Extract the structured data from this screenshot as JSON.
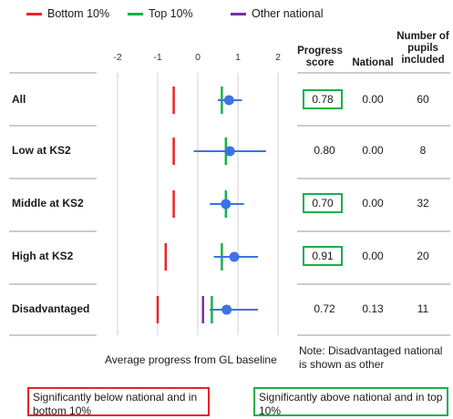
{
  "legend": [
    {
      "label": "Bottom 10%",
      "color": "#e8242b"
    },
    {
      "label": "Top 10%",
      "color": "#18b04a"
    },
    {
      "label": "Other national",
      "color": "#7b2fa3"
    }
  ],
  "headers": {
    "progress": "Progress score",
    "national": "National",
    "pupils": "Number of pupils included"
  },
  "xaxis_title": "Average progress from GL baseline",
  "note": "Note: Disadvantaged national is shown as other",
  "key_boxes": {
    "below": "Significantly below national and in bottom 10%",
    "above": "Significantly above national and in top 10%"
  },
  "colors": {
    "point": "#3b73e6",
    "bottom": "#e8242b",
    "top": "#18b04a",
    "other": "#7b2fa3",
    "highlight": "#18b04a",
    "below_box": "#e8242b"
  },
  "chart_data": {
    "type": "scatter",
    "title": "",
    "xlabel": "Average progress from GL baseline",
    "xlim": [
      -2,
      2
    ],
    "x_ticks": [
      "-2",
      "-1",
      "0",
      "1",
      "2"
    ],
    "grid": true,
    "categories": [
      "All",
      "Low at KS2",
      "Middle at KS2",
      "High at KS2",
      "Disadvantaged"
    ],
    "series": [
      {
        "name": "Progress score",
        "values": [
          0.78,
          0.8,
          0.7,
          0.91,
          0.72
        ],
        "ci_low": [
          0.5,
          -0.1,
          0.3,
          0.4,
          0.3
        ],
        "ci_high": [
          1.1,
          1.7,
          1.15,
          1.5,
          1.5
        ]
      },
      {
        "name": "Bottom 10%",
        "values": [
          -0.6,
          -0.6,
          -0.6,
          -0.8,
          -1.0
        ]
      },
      {
        "name": "Top 10%",
        "values": [
          0.6,
          0.7,
          0.7,
          0.6,
          0.35
        ]
      },
      {
        "name": "Other national",
        "values": [
          null,
          null,
          null,
          null,
          0.13
        ]
      }
    ],
    "table": {
      "rows": [
        {
          "label": "All",
          "progress": "0.78",
          "national": "0.00",
          "pupils": "60",
          "highlight": true
        },
        {
          "label": "Low at KS2",
          "progress": "0.80",
          "national": "0.00",
          "pupils": "8",
          "highlight": false
        },
        {
          "label": "Middle at KS2",
          "progress": "0.70",
          "national": "0.00",
          "pupils": "32",
          "highlight": true
        },
        {
          "label": "High at KS2",
          "progress": "0.91",
          "national": "0.00",
          "pupils": "20",
          "highlight": true
        },
        {
          "label": "Disadvantaged",
          "progress": "0.72",
          "national": "0.13",
          "pupils": "11",
          "highlight": false
        }
      ]
    }
  }
}
